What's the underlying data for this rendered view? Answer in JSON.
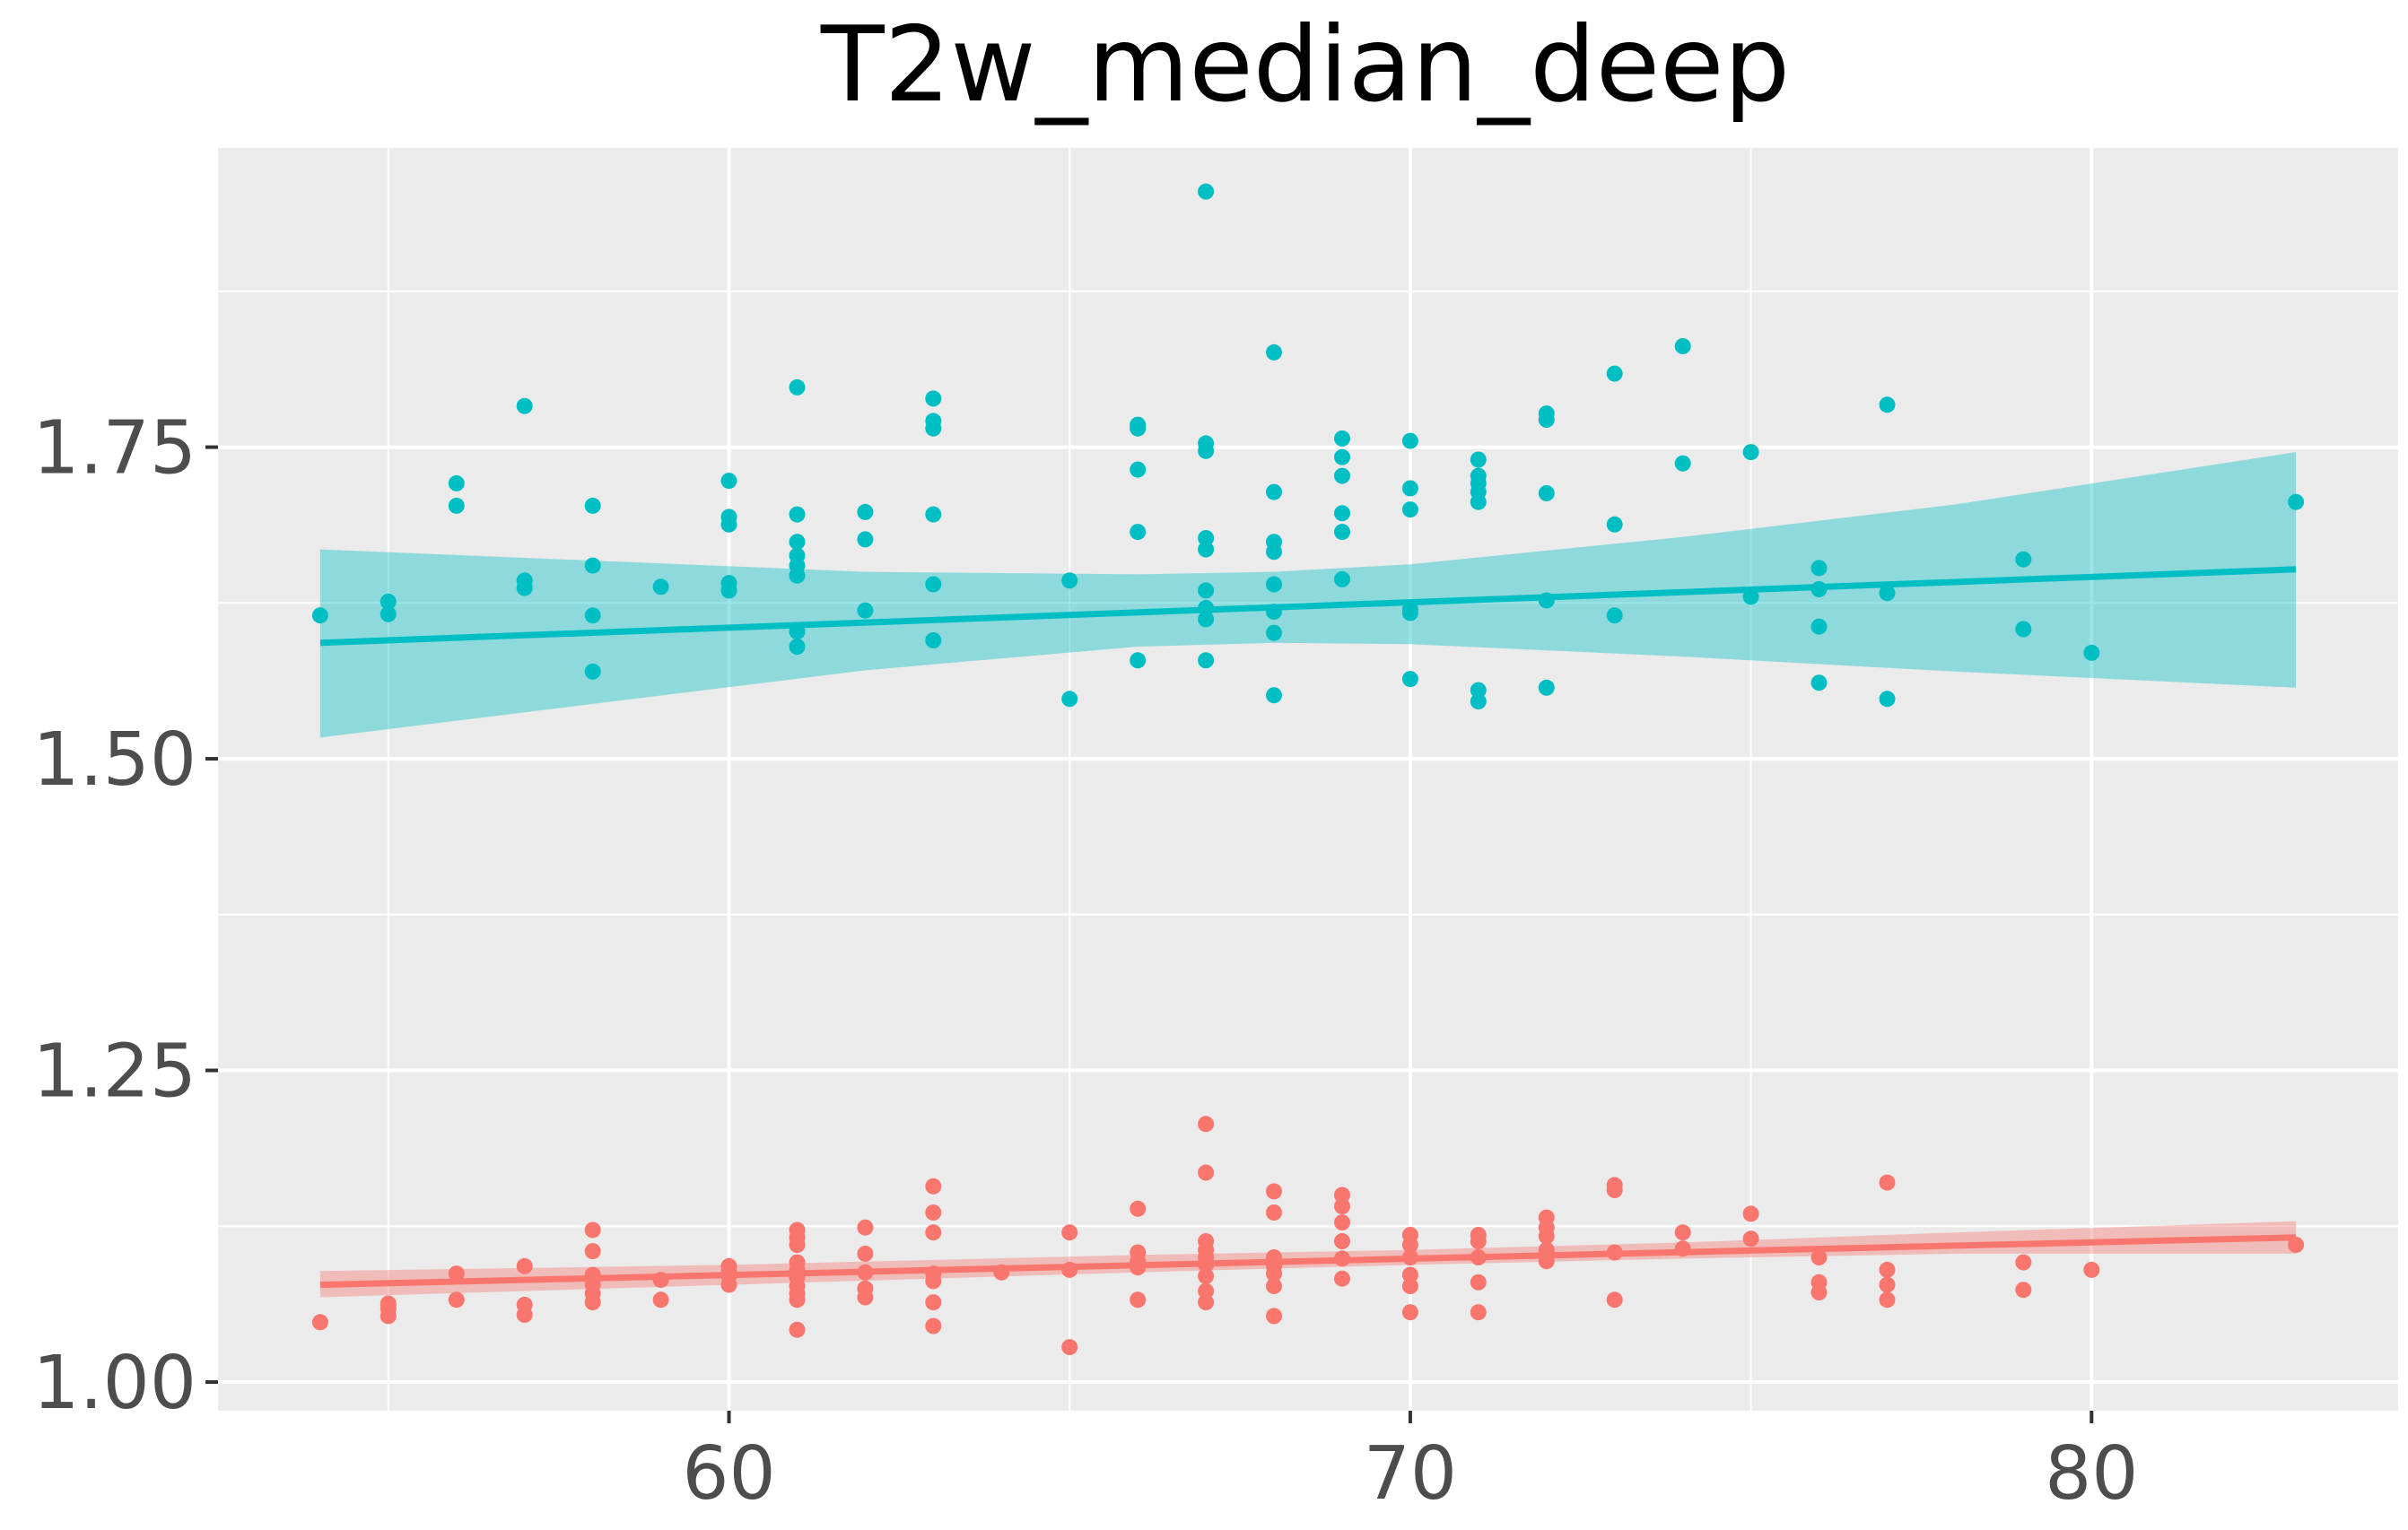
{
  "chart_data": {
    "type": "scatter",
    "title": "T2w_median_deep",
    "xlabel": "",
    "ylabel": "",
    "xlim": [
      52.5,
      84.5
    ],
    "ylim": [
      0.977,
      1.99
    ],
    "x_ticks": [
      60,
      70,
      80
    ],
    "x_tick_labels": [
      "60",
      "70",
      "80"
    ],
    "y_ticks": [
      1.0,
      1.25,
      1.5,
      1.75
    ],
    "y_tick_labels": [
      "1.00",
      "1.25",
      "1.50",
      "1.75"
    ],
    "grid": true,
    "legend": "none",
    "colors": {
      "panel": "#ebebeb",
      "grid": "#ffffff",
      "teal": "#00bfc4",
      "salmon": "#f8766d",
      "tick_text": "#4d4d4d"
    },
    "series": [
      {
        "color": "#00bfc4",
        "fit": {
          "x": [
            54,
            83
          ],
          "y": [
            1.593,
            1.652
          ]
        },
        "band": {
          "x": [
            54,
            58,
            62,
            66,
            68,
            70,
            74,
            78,
            83
          ],
          "lower": [
            1.517,
            1.544,
            1.571,
            1.59,
            1.593,
            1.592,
            1.582,
            1.57,
            1.557
          ],
          "upper": [
            1.668,
            1.659,
            1.65,
            1.648,
            1.65,
            1.656,
            1.678,
            1.704,
            1.746
          ]
        },
        "points": [
          [
            54,
            1.615
          ],
          [
            55,
            1.626
          ],
          [
            55,
            1.616
          ],
          [
            56,
            1.721
          ],
          [
            56,
            1.703
          ],
          [
            57,
            1.783
          ],
          [
            57,
            1.643
          ],
          [
            57,
            1.637
          ],
          [
            58,
            1.703
          ],
          [
            58,
            1.655
          ],
          [
            58,
            1.615
          ],
          [
            58,
            1.57
          ],
          [
            59,
            1.638
          ],
          [
            60,
            1.723
          ],
          [
            60,
            1.694
          ],
          [
            60,
            1.688
          ],
          [
            60,
            1.641
          ],
          [
            60,
            1.635
          ],
          [
            61,
            1.798
          ],
          [
            61,
            1.696
          ],
          [
            61,
            1.674
          ],
          [
            61,
            1.663
          ],
          [
            61,
            1.655
          ],
          [
            61,
            1.647
          ],
          [
            61,
            1.602
          ],
          [
            61,
            1.59
          ],
          [
            62,
            1.698
          ],
          [
            62,
            1.676
          ],
          [
            62,
            1.619
          ],
          [
            63,
            1.789
          ],
          [
            63,
            1.771
          ],
          [
            63,
            1.765
          ],
          [
            63,
            1.696
          ],
          [
            63,
            1.64
          ],
          [
            63,
            1.595
          ],
          [
            65,
            1.643
          ],
          [
            65,
            1.548
          ],
          [
            66,
            1.768
          ],
          [
            66,
            1.765
          ],
          [
            66,
            1.732
          ],
          [
            66,
            1.682
          ],
          [
            66,
            1.579
          ],
          [
            67,
            1.955
          ],
          [
            67,
            1.753
          ],
          [
            67,
            1.747
          ],
          [
            67,
            1.677
          ],
          [
            67,
            1.668
          ],
          [
            67,
            1.635
          ],
          [
            67,
            1.621
          ],
          [
            67,
            1.612
          ],
          [
            67,
            1.579
          ],
          [
            68,
            1.826
          ],
          [
            68,
            1.714
          ],
          [
            68,
            1.674
          ],
          [
            68,
            1.666
          ],
          [
            68,
            1.64
          ],
          [
            68,
            1.618
          ],
          [
            68,
            1.601
          ],
          [
            68,
            1.551
          ],
          [
            69,
            1.757
          ],
          [
            69,
            1.742
          ],
          [
            69,
            1.727
          ],
          [
            69,
            1.697
          ],
          [
            69,
            1.682
          ],
          [
            69,
            1.644
          ],
          [
            70,
            1.755
          ],
          [
            70,
            1.717
          ],
          [
            70,
            1.7
          ],
          [
            70,
            1.62
          ],
          [
            70,
            1.617
          ],
          [
            70,
            1.564
          ],
          [
            71,
            1.74
          ],
          [
            71,
            1.727
          ],
          [
            71,
            1.721
          ],
          [
            71,
            1.714
          ],
          [
            71,
            1.706
          ],
          [
            71,
            1.555
          ],
          [
            71,
            1.546
          ],
          [
            72,
            1.777
          ],
          [
            72,
            1.772
          ],
          [
            72,
            1.713
          ],
          [
            72,
            1.627
          ],
          [
            72,
            1.557
          ],
          [
            73,
            1.809
          ],
          [
            73,
            1.688
          ],
          [
            73,
            1.615
          ],
          [
            74,
            1.831
          ],
          [
            74,
            1.737
          ],
          [
            75,
            1.746
          ],
          [
            75,
            1.63
          ],
          [
            76,
            1.653
          ],
          [
            76,
            1.636
          ],
          [
            76,
            1.606
          ],
          [
            76,
            1.561
          ],
          [
            77,
            1.784
          ],
          [
            77,
            1.633
          ],
          [
            77,
            1.548
          ],
          [
            79,
            1.66
          ],
          [
            79,
            1.604
          ],
          [
            80,
            1.585
          ],
          [
            83,
            1.706
          ]
        ]
      },
      {
        "color": "#f8766d",
        "fit": {
          "x": [
            54,
            83
          ],
          "y": [
            1.078,
            1.116
          ]
        },
        "band": {
          "x": [
            54,
            60,
            66,
            70,
            74,
            78,
            83
          ],
          "lower": [
            1.068,
            1.078,
            1.088,
            1.094,
            1.099,
            1.103,
            1.103
          ],
          "upper": [
            1.089,
            1.094,
            1.102,
            1.106,
            1.112,
            1.12,
            1.129
          ]
        },
        "points": [
          [
            54,
            1.048
          ],
          [
            55,
            1.063
          ],
          [
            55,
            1.059
          ],
          [
            55,
            1.053
          ],
          [
            56,
            1.087
          ],
          [
            56,
            1.066
          ],
          [
            57,
            1.093
          ],
          [
            57,
            1.062
          ],
          [
            57,
            1.054
          ],
          [
            58,
            1.122
          ],
          [
            58,
            1.105
          ],
          [
            58,
            1.086
          ],
          [
            58,
            1.078
          ],
          [
            58,
            1.071
          ],
          [
            58,
            1.064
          ],
          [
            59,
            1.082
          ],
          [
            59,
            1.066
          ],
          [
            60,
            1.093
          ],
          [
            60,
            1.089
          ],
          [
            60,
            1.085
          ],
          [
            60,
            1.078
          ],
          [
            61,
            1.122
          ],
          [
            61,
            1.116
          ],
          [
            61,
            1.11
          ],
          [
            61,
            1.096
          ],
          [
            61,
            1.09
          ],
          [
            61,
            1.084
          ],
          [
            61,
            1.077
          ],
          [
            61,
            1.071
          ],
          [
            61,
            1.066
          ],
          [
            61,
            1.042
          ],
          [
            62,
            1.124
          ],
          [
            62,
            1.103
          ],
          [
            62,
            1.088
          ],
          [
            62,
            1.075
          ],
          [
            62,
            1.068
          ],
          [
            63,
            1.157
          ],
          [
            63,
            1.136
          ],
          [
            63,
            1.12
          ],
          [
            63,
            1.087
          ],
          [
            63,
            1.081
          ],
          [
            63,
            1.064
          ],
          [
            63,
            1.045
          ],
          [
            64,
            1.088
          ],
          [
            65,
            1.12
          ],
          [
            65,
            1.09
          ],
          [
            65,
            1.028
          ],
          [
            66,
            1.139
          ],
          [
            66,
            1.104
          ],
          [
            66,
            1.097
          ],
          [
            66,
            1.092
          ],
          [
            66,
            1.066
          ],
          [
            67,
            1.207
          ],
          [
            67,
            1.168
          ],
          [
            67,
            1.113
          ],
          [
            67,
            1.106
          ],
          [
            67,
            1.1
          ],
          [
            67,
            1.094
          ],
          [
            67,
            1.085
          ],
          [
            67,
            1.073
          ],
          [
            67,
            1.064
          ],
          [
            68,
            1.153
          ],
          [
            68,
            1.136
          ],
          [
            68,
            1.1
          ],
          [
            68,
            1.093
          ],
          [
            68,
            1.087
          ],
          [
            68,
            1.077
          ],
          [
            68,
            1.053
          ],
          [
            69,
            1.15
          ],
          [
            69,
            1.141
          ],
          [
            69,
            1.128
          ],
          [
            69,
            1.113
          ],
          [
            69,
            1.099
          ],
          [
            69,
            1.083
          ],
          [
            70,
            1.118
          ],
          [
            70,
            1.11
          ],
          [
            70,
            1.1
          ],
          [
            70,
            1.086
          ],
          [
            70,
            1.077
          ],
          [
            70,
            1.056
          ],
          [
            71,
            1.118
          ],
          [
            71,
            1.113
          ],
          [
            71,
            1.1
          ],
          [
            71,
            1.08
          ],
          [
            71,
            1.056
          ],
          [
            72,
            1.132
          ],
          [
            72,
            1.124
          ],
          [
            72,
            1.117
          ],
          [
            72,
            1.106
          ],
          [
            72,
            1.097
          ],
          [
            73,
            1.158
          ],
          [
            73,
            1.154
          ],
          [
            73,
            1.104
          ],
          [
            73,
            1.066
          ],
          [
            74,
            1.12
          ],
          [
            74,
            1.107
          ],
          [
            75,
            1.135
          ],
          [
            75,
            1.115
          ],
          [
            76,
            1.1
          ],
          [
            76,
            1.08
          ],
          [
            76,
            1.072
          ],
          [
            77,
            1.16
          ],
          [
            77,
            1.09
          ],
          [
            77,
            1.078
          ],
          [
            77,
            1.066
          ],
          [
            79,
            1.096
          ],
          [
            79,
            1.074
          ],
          [
            80,
            1.09
          ],
          [
            83,
            1.11
          ]
        ]
      }
    ]
  }
}
